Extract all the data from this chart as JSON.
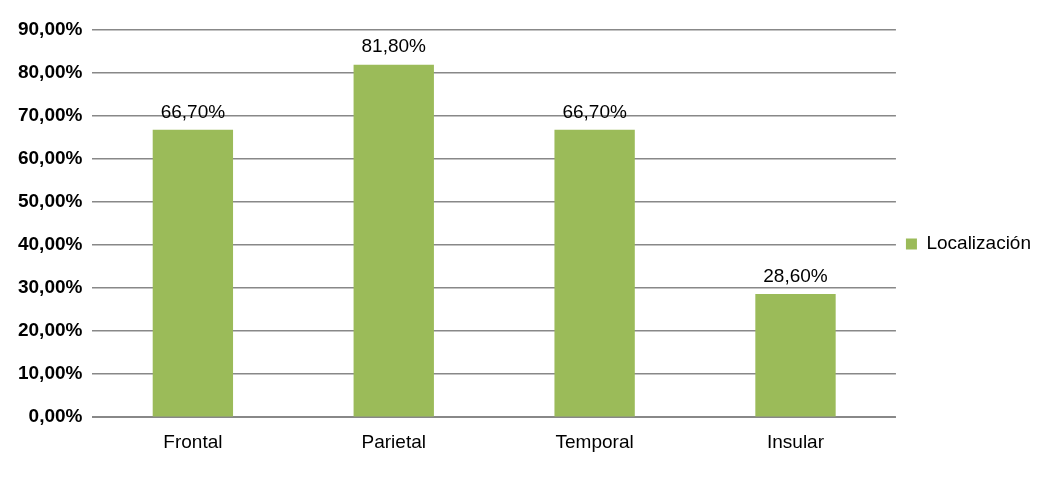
{
  "chart_data": {
    "type": "bar",
    "categories": [
      "Frontal",
      "Parietal",
      "Temporal",
      "Insular"
    ],
    "series": [
      {
        "name": "Localización",
        "color": "#9bbb59",
        "values": [
          66.7,
          81.8,
          66.7,
          28.6
        ],
        "value_labels": [
          "66,70%",
          "81,80%",
          "66,70%",
          "28,60%"
        ]
      }
    ],
    "ylim": [
      0,
      90
    ],
    "yticks": [
      {
        "value": 0,
        "label": "0,00%"
      },
      {
        "value": 10,
        "label": "10,00%"
      },
      {
        "value": 20,
        "label": "20,00%"
      },
      {
        "value": 30,
        "label": "30,00%"
      },
      {
        "value": 40,
        "label": "40,00%"
      },
      {
        "value": 50,
        "label": "50,00%"
      },
      {
        "value": 60,
        "label": "60,00%"
      },
      {
        "value": 70,
        "label": "70,00%"
      },
      {
        "value": 80,
        "label": "80,00%"
      },
      {
        "value": 90,
        "label": "90,00%"
      }
    ],
    "grid": "y",
    "legend": "right"
  }
}
